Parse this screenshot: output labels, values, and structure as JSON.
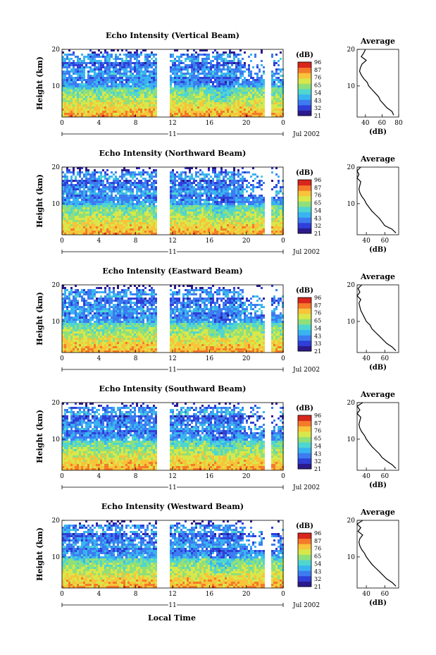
{
  "figure": {
    "xlabel": "Local Time",
    "date_label": "Jul 2002",
    "day_label": "11",
    "colorbar_unit": "(dB)",
    "colorbar_ticks": [
      "96",
      "87",
      "76",
      "65",
      "54",
      "43",
      "32",
      "21"
    ],
    "colorbar_ticks_alt": [
      "96",
      "87",
      "76",
      "65",
      "54",
      "43",
      "33",
      "21"
    ],
    "colors": {
      "scale": [
        "#2b1a8c",
        "#2f3fd8",
        "#3c7cf0",
        "#39b4f0",
        "#4fd6d0",
        "#8fe07a",
        "#d8e84a",
        "#f7c43a",
        "#f57a2a",
        "#d8261c"
      ],
      "line": "#000000"
    }
  },
  "chart_data": [
    {
      "type": "heatmap",
      "title": "Echo Intensity (Vertical Beam)",
      "xlabel": "Local Time",
      "ylabel": "Height (km)",
      "xticks": [
        "0",
        "4",
        "8",
        "12",
        "16",
        "20",
        "0"
      ],
      "yticks": [
        "20",
        "10"
      ],
      "xlim": [
        0,
        24
      ],
      "ylim": [
        1.5,
        20
      ],
      "data_gap_hours": [
        10.3,
        11.5
      ],
      "colorbar": {
        "unit": "(dB)",
        "ticks": [
          96,
          87,
          76,
          65,
          54,
          43,
          32,
          21
        ]
      },
      "profile": {
        "title": "Average",
        "xlabel": "(dB)",
        "xticks": [
          "40",
          "60",
          "80"
        ],
        "xlim": [
          30,
          80
        ],
        "yticks": [
          "20",
          "10"
        ],
        "ylim": [
          1.5,
          20
        ],
        "points": [
          [
            74,
            2
          ],
          [
            72,
            3
          ],
          [
            66,
            4
          ],
          [
            62,
            5
          ],
          [
            58,
            6
          ],
          [
            56,
            7
          ],
          [
            52,
            8
          ],
          [
            48,
            9
          ],
          [
            44,
            10
          ],
          [
            42,
            11
          ],
          [
            38,
            12
          ],
          [
            35,
            13
          ],
          [
            33,
            14
          ],
          [
            34,
            15
          ],
          [
            36,
            16
          ],
          [
            41,
            17
          ],
          [
            35,
            18
          ],
          [
            38,
            19
          ],
          [
            40,
            20
          ]
        ]
      }
    },
    {
      "type": "heatmap",
      "title": "Echo Intensity (Northward Beam)",
      "xlabel": "Local Time",
      "ylabel": "Height (km)",
      "xticks": [
        "0",
        "4",
        "8",
        "12",
        "16",
        "20",
        "0"
      ],
      "yticks": [
        "20",
        "10"
      ],
      "xlim": [
        0,
        24
      ],
      "ylim": [
        1.5,
        20
      ],
      "data_gap_hours": [
        10.3,
        11.5
      ],
      "colorbar": {
        "unit": "(dB)",
        "ticks": [
          96,
          87,
          76,
          65,
          54,
          43,
          32,
          21
        ]
      },
      "profile": {
        "title": "Average",
        "xlabel": "(dB)",
        "xticks": [
          "40",
          "60"
        ],
        "xlim": [
          30,
          75
        ],
        "yticks": [
          "20",
          "10"
        ],
        "ylim": [
          1.5,
          20
        ],
        "points": [
          [
            72,
            2
          ],
          [
            68,
            3
          ],
          [
            60,
            4
          ],
          [
            57,
            5
          ],
          [
            54,
            6
          ],
          [
            50,
            7
          ],
          [
            46,
            8
          ],
          [
            43,
            9
          ],
          [
            40,
            10
          ],
          [
            38,
            11
          ],
          [
            35,
            12
          ],
          [
            33,
            13
          ],
          [
            32,
            14
          ],
          [
            33,
            15
          ],
          [
            34,
            16
          ],
          [
            30,
            17
          ],
          [
            32,
            18
          ],
          [
            30,
            19
          ],
          [
            34,
            20
          ]
        ]
      }
    },
    {
      "type": "heatmap",
      "title": "Echo Intensity (Eastward Beam)",
      "xlabel": "Local Time",
      "ylabel": "Height (km)",
      "xticks": [
        "0",
        "4",
        "8",
        "12",
        "16",
        "20",
        "0"
      ],
      "yticks": [
        "20",
        "10"
      ],
      "xlim": [
        0,
        24
      ],
      "ylim": [
        1.5,
        20
      ],
      "data_gap_hours": [
        10.3,
        11.5
      ],
      "colorbar": {
        "unit": "(dB)",
        "ticks": [
          96,
          87,
          76,
          65,
          54,
          43,
          33,
          21
        ]
      },
      "profile": {
        "title": "Average",
        "xlabel": "(dB)",
        "xticks": [
          "40",
          "60"
        ],
        "xlim": [
          30,
          75
        ],
        "yticks": [
          "20",
          "10"
        ],
        "ylim": [
          1.5,
          20
        ],
        "points": [
          [
            72,
            2
          ],
          [
            68,
            3
          ],
          [
            62,
            4
          ],
          [
            58,
            5
          ],
          [
            54,
            6
          ],
          [
            50,
            7
          ],
          [
            46,
            8
          ],
          [
            44,
            9
          ],
          [
            40,
            10
          ],
          [
            38,
            11
          ],
          [
            36,
            12
          ],
          [
            34,
            13
          ],
          [
            33,
            14
          ],
          [
            32,
            15
          ],
          [
            34,
            16
          ],
          [
            30,
            17
          ],
          [
            33,
            18
          ],
          [
            31,
            19
          ],
          [
            35,
            20
          ]
        ]
      }
    },
    {
      "type": "heatmap",
      "title": "Echo Intensity (Southward Beam)",
      "xlabel": "Local Time",
      "ylabel": "Height (km)",
      "xticks": [
        "0",
        "4",
        "8",
        "12",
        "16",
        "20",
        "0"
      ],
      "yticks": [
        "20",
        "10"
      ],
      "xlim": [
        0,
        24
      ],
      "ylim": [
        1.5,
        20
      ],
      "data_gap_hours": [
        10.3,
        11.5
      ],
      "colorbar": {
        "unit": "(dB)",
        "ticks": [
          96,
          87,
          76,
          65,
          54,
          43,
          32,
          21
        ]
      },
      "profile": {
        "title": "Average",
        "xlabel": "(dB)",
        "xticks": [
          "40",
          "60"
        ],
        "xlim": [
          30,
          75
        ],
        "yticks": [
          "20",
          "10"
        ],
        "ylim": [
          1.5,
          20
        ],
        "points": [
          [
            72,
            2
          ],
          [
            68,
            3
          ],
          [
            62,
            4
          ],
          [
            57,
            5
          ],
          [
            54,
            6
          ],
          [
            50,
            7
          ],
          [
            46,
            8
          ],
          [
            43,
            9
          ],
          [
            40,
            10
          ],
          [
            38,
            11
          ],
          [
            35,
            12
          ],
          [
            33,
            13
          ],
          [
            32,
            14
          ],
          [
            33,
            15
          ],
          [
            34,
            16
          ],
          [
            30,
            17
          ],
          [
            33,
            18
          ],
          [
            30,
            19
          ],
          [
            36,
            20
          ]
        ]
      }
    },
    {
      "type": "heatmap",
      "title": "Echo Intensity (Westward Beam)",
      "xlabel": "Local Time",
      "ylabel": "Height (km)",
      "xticks": [
        "0",
        "4",
        "8",
        "12",
        "16",
        "20",
        "0"
      ],
      "yticks": [
        "20",
        "10"
      ],
      "xlim": [
        0,
        24
      ],
      "ylim": [
        1.5,
        20
      ],
      "data_gap_hours": [
        10.3,
        11.5
      ],
      "colorbar": {
        "unit": "(dB)",
        "ticks": [
          96,
          87,
          76,
          65,
          54,
          43,
          32,
          21
        ]
      },
      "profile": {
        "title": "Average",
        "xlabel": "(dB)",
        "xticks": [
          "40",
          "60"
        ],
        "xlim": [
          30,
          75
        ],
        "yticks": [
          "20",
          "10"
        ],
        "ylim": [
          1.5,
          20
        ],
        "points": [
          [
            72,
            2
          ],
          [
            68,
            3
          ],
          [
            62,
            4
          ],
          [
            58,
            5
          ],
          [
            54,
            6
          ],
          [
            50,
            7
          ],
          [
            46,
            8
          ],
          [
            43,
            9
          ],
          [
            40,
            10
          ],
          [
            38,
            11
          ],
          [
            35,
            12
          ],
          [
            33,
            13
          ],
          [
            32,
            14
          ],
          [
            33,
            15
          ],
          [
            36,
            16
          ],
          [
            31,
            17
          ],
          [
            34,
            18
          ],
          [
            30,
            19
          ],
          [
            36,
            20
          ]
        ]
      }
    }
  ]
}
